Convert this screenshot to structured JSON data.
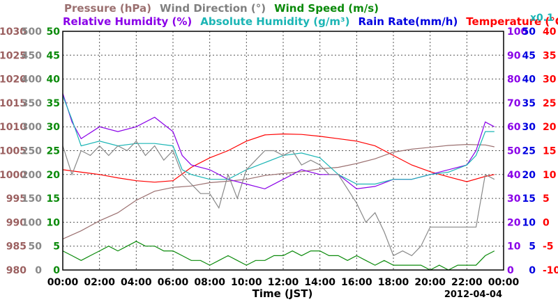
{
  "chart_data": {
    "type": "line",
    "legend": {
      "row1": [
        {
          "text": "Pressure (hPa)",
          "color": "#9b7070"
        },
        {
          "text": "Wind Direction (°)",
          "color": "#808080"
        },
        {
          "text": "Wind Speed (m/s)",
          "color": "#0a8a0a"
        }
      ],
      "row2": [
        {
          "text": "Relative Humidity (%)",
          "color": "#8a00e8"
        },
        {
          "text": "Absolute Humidity (g/m³)",
          "color": "#1bb5b5"
        },
        {
          "text": "Rain Rate(mm/h)",
          "color": "#0000e0"
        },
        {
          "text": "Temperature (°C)",
          "color": "#ff0000"
        }
      ],
      "scale_note": {
        "text": "x0.1",
        "color": "#1bb5b5"
      }
    },
    "xlabel": "Time (JST)",
    "date_label": "2012-04-04",
    "x_ticks": [
      "00:00",
      "02:00",
      "04:00",
      "06:00",
      "08:00",
      "10:00",
      "12:00",
      "14:00",
      "16:00",
      "18:00",
      "20:00",
      "22:00",
      "00:00"
    ],
    "axes": {
      "pressure": {
        "ticks": [
          "1030",
          "1025",
          "1020",
          "1015",
          "1010",
          "1005",
          "1000",
          "995",
          "990",
          "985",
          "980"
        ],
        "color": "#9b6060",
        "range": [
          980,
          1030
        ]
      },
      "wind_dir": {
        "ticks": [
          "500",
          "450",
          "400",
          "350",
          "300",
          "250",
          "200",
          "150",
          "100",
          "50",
          "0"
        ],
        "color": "#888888",
        "range": [
          0,
          500
        ]
      },
      "wind_speed": {
        "ticks": [
          "50",
          "45",
          "40",
          "35",
          "30",
          "25",
          "20",
          "15",
          "10",
          "5",
          "0"
        ],
        "color": "#0a8a0a",
        "range": [
          0,
          50
        ]
      },
      "humidity": {
        "ticks": [
          "100",
          "90",
          "80",
          "70",
          "60",
          "50",
          "40",
          "30",
          "20",
          "10",
          "0"
        ],
        "color": "#8a00e8",
        "range": [
          0,
          100
        ]
      },
      "rain": {
        "ticks": [
          "50",
          "45",
          "40",
          "35",
          "30",
          "25",
          "20",
          "15",
          "10",
          "5",
          "0"
        ],
        "color": "#0000e0",
        "range": [
          0,
          50
        ]
      },
      "temperature": {
        "ticks": [
          "40",
          "35",
          "30",
          "25",
          "20",
          "15",
          "10",
          "5",
          "0",
          "-5",
          "-10"
        ],
        "color": "#ff0000",
        "range": [
          -10,
          40
        ]
      }
    },
    "grid": true,
    "series": [
      {
        "name": "Temperature (°C)",
        "color": "#ff0000",
        "x": [
          0,
          1,
          2,
          3,
          4,
          5,
          6,
          7,
          8,
          9,
          10,
          11,
          12,
          13,
          14,
          15,
          16,
          17,
          18,
          19,
          20,
          21,
          22,
          23,
          23.5
        ],
        "y": [
          11,
          10.5,
          10,
          9.3,
          8.7,
          8.4,
          8.7,
          11.5,
          13.5,
          15,
          17,
          18.3,
          18.5,
          18.4,
          18,
          17.5,
          17,
          16,
          14,
          12,
          10.6,
          9.5,
          8.5,
          9.6,
          10
        ]
      },
      {
        "name": "Pressure (hPa)",
        "color": "#9b7070",
        "x": [
          0,
          1,
          2,
          3,
          4,
          5,
          6,
          7,
          8,
          9,
          10,
          11,
          12,
          13,
          14,
          15,
          16,
          17,
          18,
          19,
          20,
          21,
          22,
          23,
          23.5
        ],
        "y": [
          986.5,
          988.2,
          990.3,
          992,
          994.6,
          996.5,
          997.3,
          997.6,
          998.3,
          998.6,
          999,
          999.8,
          1000.2,
          1000.6,
          1001.2,
          1001.5,
          1002.3,
          1003.3,
          1004.7,
          1005.3,
          1005.7,
          1006.1,
          1006.3,
          1006.2,
          1005.8
        ]
      },
      {
        "name": "Relative Humidity (%)",
        "color": "#8a00e8",
        "x": [
          0,
          0.5,
          1,
          2,
          3,
          4,
          5,
          6,
          6.5,
          7,
          8,
          9,
          10,
          11,
          12,
          13,
          14,
          15,
          16,
          17,
          18,
          19,
          20,
          21,
          22,
          22.5,
          23,
          23.5
        ],
        "y": [
          74,
          62,
          55,
          60,
          58,
          60,
          64,
          58,
          48,
          44,
          42,
          38,
          36,
          34,
          38,
          42,
          40,
          40,
          34,
          35,
          38,
          38,
          40,
          42,
          44,
          50,
          62,
          60
        ]
      },
      {
        "name": "Absolute Humidity (g/m³)",
        "color": "#1bb5b5",
        "x": [
          0,
          0.5,
          1,
          2,
          3,
          4,
          5,
          6,
          6.5,
          7,
          8,
          9,
          10,
          11,
          12,
          13,
          14,
          15,
          16,
          17,
          18,
          19,
          20,
          21,
          22,
          22.5,
          23,
          23.5
        ],
        "y": [
          73,
          63,
          52,
          54,
          52,
          53,
          53,
          52,
          42,
          40,
          38,
          38,
          42,
          45,
          48,
          49,
          47,
          40,
          36,
          36,
          38,
          38,
          40,
          41,
          44,
          48,
          58,
          58
        ]
      },
      {
        "name": "Wind Direction (°)",
        "color": "#888888",
        "x": [
          0,
          0.5,
          1,
          1.5,
          2,
          2.5,
          3,
          3.5,
          4,
          4.5,
          5,
          5.5,
          6,
          6.5,
          7,
          7.5,
          8,
          8.5,
          9,
          9.5,
          10,
          10.5,
          11,
          11.5,
          12,
          12.5,
          13,
          13.5,
          14,
          14.5,
          15,
          15.5,
          16,
          16.5,
          17,
          17.5,
          18,
          18.5,
          19,
          19.5,
          20,
          21,
          22,
          22.5,
          23,
          23.5
        ],
        "y": [
          260,
          200,
          250,
          240,
          260,
          240,
          260,
          250,
          270,
          240,
          260,
          230,
          250,
          200,
          180,
          160,
          160,
          130,
          200,
          150,
          210,
          230,
          250,
          250,
          240,
          250,
          220,
          230,
          220,
          200,
          200,
          170,
          140,
          100,
          120,
          80,
          30,
          40,
          30,
          50,
          90,
          90,
          90,
          90,
          200,
          190
        ]
      },
      {
        "name": "Wind Speed (m/s)",
        "color": "#0a8a0a",
        "x": [
          0,
          0.5,
          1,
          1.5,
          2,
          2.5,
          3,
          3.5,
          4,
          4.5,
          5,
          5.5,
          6,
          6.5,
          7,
          7.5,
          8,
          8.5,
          9,
          9.5,
          10,
          10.5,
          11,
          11.5,
          12,
          12.5,
          13,
          13.5,
          14,
          14.5,
          15,
          15.5,
          16,
          16.5,
          17,
          17.5,
          18,
          18.5,
          19,
          19.5,
          20,
          20.5,
          21,
          21.5,
          22,
          22.5,
          23,
          23.5
        ],
        "y": [
          4,
          3,
          2,
          3,
          4,
          5,
          4,
          5,
          6,
          5,
          5,
          4,
          4,
          3,
          2,
          2,
          1,
          2,
          3,
          2,
          1,
          2,
          2,
          3,
          3,
          4,
          3,
          4,
          4,
          3,
          3,
          2,
          3,
          2,
          1,
          2,
          1,
          1,
          1,
          1,
          0,
          1,
          0,
          1,
          1,
          1,
          3,
          4
        ]
      }
    ]
  }
}
